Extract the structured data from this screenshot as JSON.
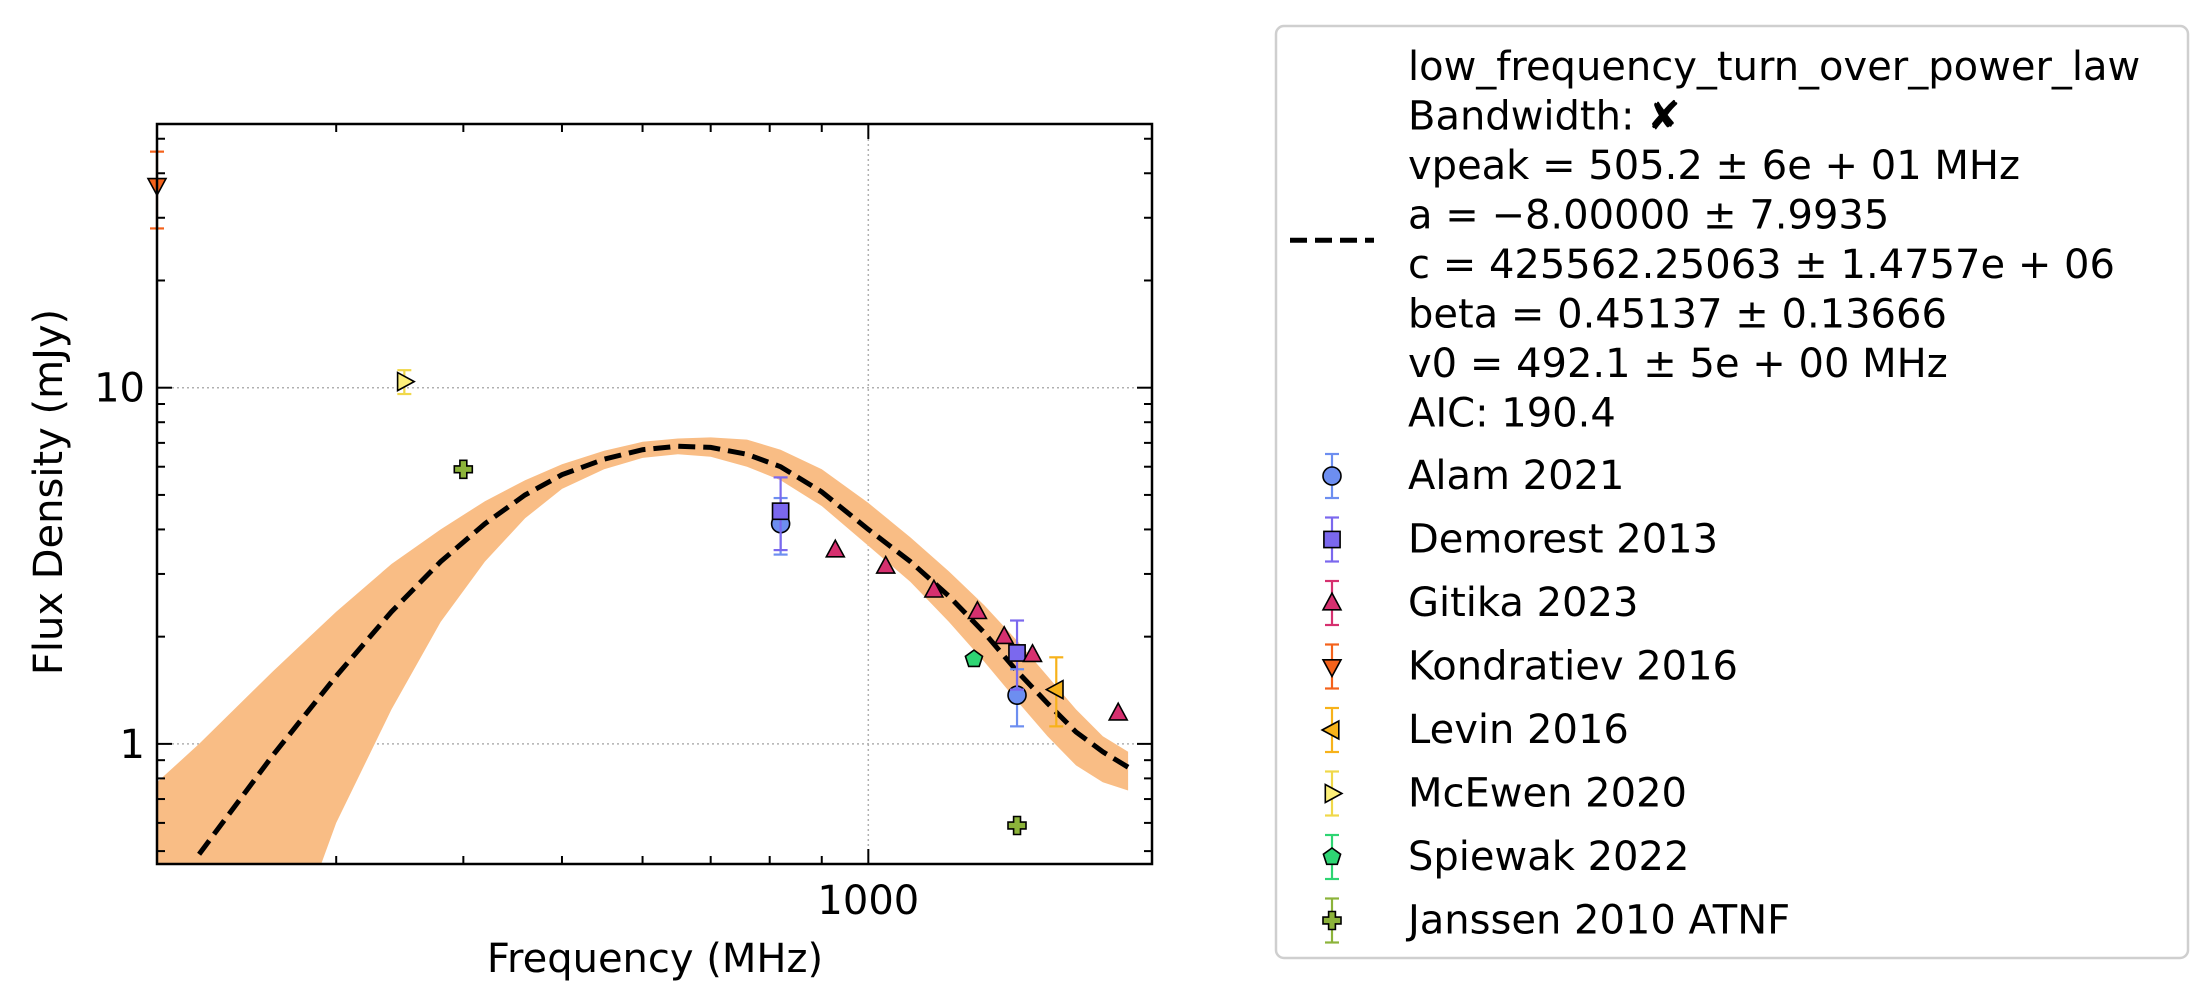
{
  "chart_data": {
    "type": "scatter",
    "xlabel": "Frequency (MHz)",
    "ylabel": "Flux Density (mJy)",
    "x_scale": "log",
    "y_scale": "log",
    "xlim": [
      200,
      1900
    ],
    "ylim": [
      0.46,
      55
    ],
    "grid": true,
    "x_ticks": [
      {
        "value": 1000,
        "label": "1000"
      }
    ],
    "y_ticks": [
      {
        "value": 1,
        "label": "1"
      },
      {
        "value": 10,
        "label": "10"
      }
    ],
    "legend_position": "outside-right",
    "fit": {
      "label_lines": [
        "low_frequency_turn_over_power_law",
        "Bandwidth: ✘",
        "vpeak = 505.2 ± 6e + 01 MHz",
        "a = −8.00000 ± 7.9935",
        "c = 425562.25063 ± 1.4757e + 06",
        "beta = 0.45137 ± 0.13666",
        "v0 = 492.1 ± 5e + 00 MHz",
        "AIC: 190.4"
      ],
      "color": "#000000",
      "band_color": "#f9bd85",
      "curve": [
        [
          220,
          0.49
        ],
        [
          260,
          0.93
        ],
        [
          300,
          1.55
        ],
        [
          340,
          2.35
        ],
        [
          380,
          3.25
        ],
        [
          420,
          4.15
        ],
        [
          460,
          5.0
        ],
        [
          500,
          5.7
        ],
        [
          550,
          6.3
        ],
        [
          600,
          6.7
        ],
        [
          650,
          6.85
        ],
        [
          700,
          6.8
        ],
        [
          760,
          6.5
        ],
        [
          820,
          6.0
        ],
        [
          900,
          5.1
        ],
        [
          1000,
          4.0
        ],
        [
          1100,
          3.25
        ],
        [
          1200,
          2.6
        ],
        [
          1300,
          2.05
        ],
        [
          1400,
          1.6
        ],
        [
          1500,
          1.3
        ],
        [
          1600,
          1.08
        ],
        [
          1700,
          0.95
        ],
        [
          1800,
          0.86
        ]
      ],
      "band_upper": [
        [
          200,
          0.78
        ],
        [
          220,
          1.0
        ],
        [
          260,
          1.6
        ],
        [
          300,
          2.35
        ],
        [
          340,
          3.2
        ],
        [
          380,
          4.0
        ],
        [
          420,
          4.8
        ],
        [
          460,
          5.5
        ],
        [
          500,
          6.1
        ],
        [
          550,
          6.65
        ],
        [
          600,
          7.05
        ],
        [
          650,
          7.2
        ],
        [
          700,
          7.25
        ],
        [
          760,
          7.15
        ],
        [
          820,
          6.7
        ],
        [
          900,
          5.9
        ],
        [
          1000,
          4.75
        ],
        [
          1100,
          3.8
        ],
        [
          1200,
          3.05
        ],
        [
          1300,
          2.45
        ],
        [
          1400,
          1.95
        ],
        [
          1500,
          1.55
        ],
        [
          1600,
          1.25
        ],
        [
          1700,
          1.05
        ],
        [
          1800,
          0.95
        ]
      ],
      "band_lower": [
        [
          200,
          0.46
        ],
        [
          220,
          0.46
        ],
        [
          260,
          0.46
        ],
        [
          290,
          0.46
        ],
        [
          300,
          0.6
        ],
        [
          340,
          1.25
        ],
        [
          380,
          2.2
        ],
        [
          420,
          3.25
        ],
        [
          460,
          4.3
        ],
        [
          500,
          5.2
        ],
        [
          550,
          5.9
        ],
        [
          600,
          6.35
        ],
        [
          650,
          6.5
        ],
        [
          700,
          6.4
        ],
        [
          760,
          6.0
        ],
        [
          820,
          5.5
        ],
        [
          900,
          4.65
        ],
        [
          1000,
          3.6
        ],
        [
          1100,
          2.85
        ],
        [
          1200,
          2.2
        ],
        [
          1300,
          1.7
        ],
        [
          1400,
          1.32
        ],
        [
          1500,
          1.05
        ],
        [
          1600,
          0.87
        ],
        [
          1700,
          0.78
        ],
        [
          1800,
          0.74
        ]
      ]
    },
    "series": [
      {
        "name": "Alam 2021",
        "marker": "circle",
        "color": "#6d8ef0",
        "err_color": "#6d8ef0",
        "points": [
          {
            "x": 820,
            "y": 4.15,
            "ylo": 3.4,
            "yhi": 4.9
          },
          {
            "x": 1400,
            "y": 1.37,
            "ylo": 1.12,
            "yhi": 1.62
          }
        ]
      },
      {
        "name": "Demorest 2013",
        "marker": "square",
        "color": "#7b68ee",
        "err_color": "#7b68ee",
        "points": [
          {
            "x": 820,
            "y": 4.5,
            "ylo": 3.5,
            "yhi": 5.6
          },
          {
            "x": 1400,
            "y": 1.8,
            "ylo": 1.42,
            "yhi": 2.22
          }
        ]
      },
      {
        "name": "Gitika 2023",
        "marker": "triangle-up",
        "color": "#d6306f",
        "err_color": "#d6306f",
        "points": [
          {
            "x": 928,
            "y": 3.5
          },
          {
            "x": 1040,
            "y": 3.15
          },
          {
            "x": 1160,
            "y": 2.7
          },
          {
            "x": 1280,
            "y": 2.35
          },
          {
            "x": 1360,
            "y": 2.0
          },
          {
            "x": 1450,
            "y": 1.78
          },
          {
            "x": 1760,
            "y": 1.22
          }
        ]
      },
      {
        "name": "Kondratiev 2016",
        "marker": "triangle-down",
        "color": "#f4621b",
        "err_color": "#f4621b",
        "points": [
          {
            "x": 200,
            "y": 37,
            "ylo": 28,
            "yhi": 46
          }
        ]
      },
      {
        "name": "Levin 2016",
        "marker": "triangle-left",
        "color": "#f7b21a",
        "err_color": "#f7b21a",
        "points": [
          {
            "x": 1530,
            "y": 1.42,
            "ylo": 1.12,
            "yhi": 1.75
          }
        ]
      },
      {
        "name": "McEwen 2020",
        "marker": "triangle-right",
        "color": "#fdf07a",
        "err_color": "#f0d84a",
        "points": [
          {
            "x": 350,
            "y": 10.4,
            "ylo": 9.6,
            "yhi": 11.2
          }
        ]
      },
      {
        "name": "Spiewak 2022",
        "marker": "pentagon",
        "color": "#2ed573",
        "err_color": "#2ed573",
        "points": [
          {
            "x": 1270,
            "y": 1.73
          }
        ]
      },
      {
        "name": "Janssen 2010 ATNF",
        "marker": "plus",
        "color": "#8cb33a",
        "err_color": "#8cb33a",
        "points": [
          {
            "x": 400,
            "y": 5.9
          },
          {
            "x": 1400,
            "y": 0.59
          }
        ]
      }
    ]
  }
}
